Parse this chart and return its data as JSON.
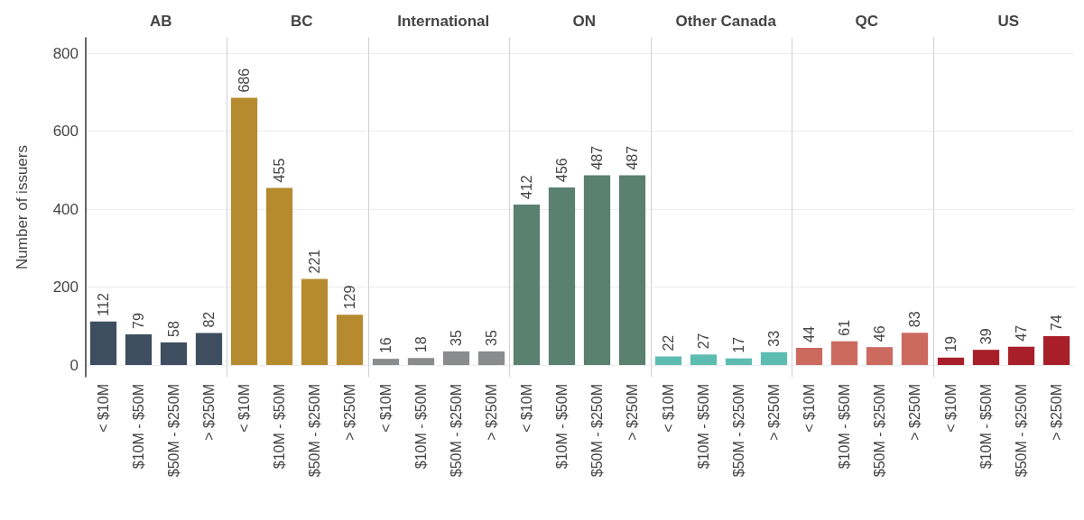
{
  "chart_data": [
    {
      "type": "bar",
      "title": "AB",
      "ylabel": "Number of issuers",
      "categories": [
        "< $10M",
        "$10M - $50M",
        "$50M - $250M",
        "> $250M"
      ],
      "values": [
        112,
        79,
        58,
        82
      ],
      "color": "#3e4e60",
      "ylim": [
        -30,
        840
      ],
      "yticks": [
        0,
        200,
        400,
        600,
        800
      ],
      "grid": "y",
      "data_labels": true
    },
    {
      "type": "bar",
      "title": "BC",
      "categories": [
        "< $10M",
        "$10M - $50M",
        "$50M - $250M",
        "> $250M"
      ],
      "values": [
        686,
        455,
        221,
        129
      ],
      "color": "#b68b2f",
      "ylim": [
        -30,
        840
      ],
      "yticks": [
        0,
        200,
        400,
        600,
        800
      ],
      "grid": "y",
      "data_labels": true,
      "tick_labels": "x"
    },
    {
      "type": "bar",
      "title": "International",
      "categories": [
        "< $10M",
        "$10M - $50M",
        "$50M - $250M",
        "> $250M"
      ],
      "values": [
        16,
        18,
        35,
        35
      ],
      "color": "#8a8b8d",
      "ylim": [
        -30,
        840
      ],
      "yticks": [
        0,
        200,
        400,
        600,
        800
      ],
      "grid": "y",
      "data_labels": true,
      "tick_labels": "x"
    },
    {
      "type": "bar",
      "title": "ON",
      "categories": [
        "< $10M",
        "$10M - $50M",
        "$50M - $250M",
        "> $250M"
      ],
      "values": [
        412,
        456,
        487,
        487
      ],
      "color": "#5a8070",
      "ylim": [
        -30,
        840
      ],
      "yticks": [
        0,
        200,
        400,
        600,
        800
      ],
      "grid": "y",
      "data_labels": true,
      "tick_labels": "x"
    },
    {
      "type": "bar",
      "title": "Other Canada",
      "categories": [
        "< $10M",
        "$10M - $50M",
        "$50M - $250M",
        "> $250M"
      ],
      "values": [
        22,
        27,
        17,
        33
      ],
      "color": "#5cbcb0",
      "ylim": [
        -30,
        840
      ],
      "yticks": [
        0,
        200,
        400,
        600,
        800
      ],
      "grid": "y",
      "data_labels": true,
      "tick_labels": "x"
    },
    {
      "type": "bar",
      "title": "QC",
      "categories": [
        "< $10M",
        "$10M - $50M",
        "$50M - $250M",
        "> $250M"
      ],
      "values": [
        44,
        61,
        46,
        83
      ],
      "color": "#cc6a60",
      "ylim": [
        -30,
        840
      ],
      "yticks": [
        0,
        200,
        400,
        600,
        800
      ],
      "grid": "y",
      "data_labels": true,
      "tick_labels": "x"
    },
    {
      "type": "bar",
      "title": "US",
      "categories": [
        "< $10M",
        "$10M - $50M",
        "$50M - $250M",
        "> $250M"
      ],
      "values": [
        19,
        39,
        47,
        74
      ],
      "color": "#a81f29",
      "ylim": [
        -30,
        840
      ],
      "yticks": [
        0,
        200,
        400,
        600,
        800
      ],
      "grid": "y",
      "data_labels": true,
      "tick_labels": "x"
    }
  ]
}
